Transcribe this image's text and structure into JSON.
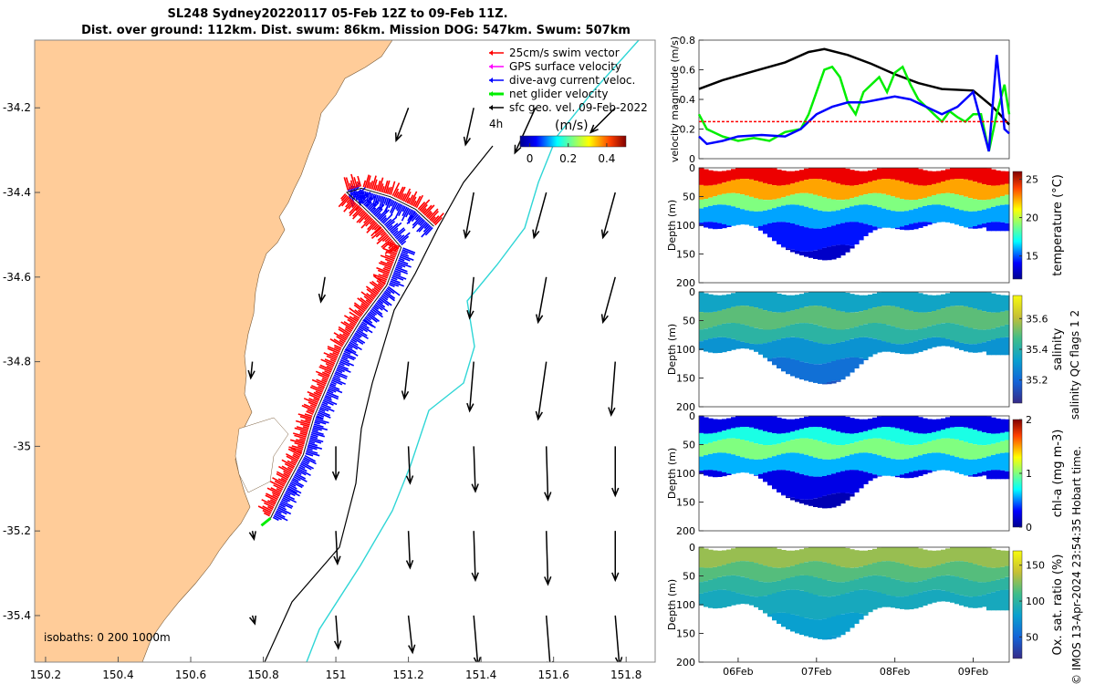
{
  "header": {
    "line1": "SL248 Sydney20220117 05-Feb 12Z to 09-Feb 11Z.",
    "line2": "Dist. over ground: 112km. Dist. swum: 86km. Mission DOG: 547km. Swum: 507km"
  },
  "chart_data": [
    {
      "type": "map",
      "x_ticks": [
        "150.2",
        "150.4",
        "150.6",
        "150.8",
        "151",
        "151.2",
        "151.4",
        "151.6",
        "151.8"
      ],
      "x_values": [
        150.2,
        150.4,
        150.6,
        150.8,
        151.0,
        151.2,
        151.4,
        151.6,
        151.8
      ],
      "y_ticks": [
        "-34.2",
        "-34.4",
        "-34.6",
        "-34.8",
        "-35",
        "-35.2",
        "-35.4"
      ],
      "y_values": [
        -34.2,
        -34.4,
        -34.6,
        -34.8,
        -35.0,
        -35.2,
        -35.4
      ],
      "xlim": [
        150.17,
        151.88
      ],
      "ylim": [
        -35.51,
        -34.04
      ],
      "legend": [
        "25cm/s swim vector",
        "GPS surface velocity",
        "dive-avg current veloc.",
        "net glider velocity",
        "sfc geo. vel. 09-Feb-2022"
      ],
      "legend_colors": [
        "#ff0000",
        "#ff00ff",
        "#0000ff",
        "#00ee00",
        "#000000"
      ],
      "colorbar_unit": "(m/s)",
      "colorbar_ticks": [
        "0",
        "0.2",
        "0.4"
      ],
      "colorbar_values": [
        0,
        0.2,
        0.4
      ],
      "colorbar_range": [
        -0.05,
        0.5
      ],
      "scale_label": "4h",
      "isobath_label": "isobaths: 0   200  1000m",
      "track": [
        [
          151.27,
          -34.48
        ],
        [
          151.22,
          -34.44
        ],
        [
          151.15,
          -34.41
        ],
        [
          151.07,
          -34.39
        ],
        [
          151.03,
          -34.4
        ],
        [
          151.07,
          -34.43
        ],
        [
          151.13,
          -34.48
        ],
        [
          151.18,
          -34.53
        ],
        [
          151.14,
          -34.62
        ],
        [
          151.07,
          -34.7
        ],
        [
          151.02,
          -34.77
        ],
        [
          150.98,
          -34.85
        ],
        [
          150.94,
          -34.93
        ],
        [
          150.91,
          -35.02
        ],
        [
          150.86,
          -35.1
        ],
        [
          150.82,
          -35.17
        ]
      ],
      "vectors": [
        {
          "lon": 151.2,
          "lat": -34.2,
          "u": -0.15,
          "v": -0.4
        },
        {
          "lon": 151.38,
          "lat": -34.2,
          "u": -0.1,
          "v": -0.45
        },
        {
          "lon": 151.55,
          "lat": -34.2,
          "u": -0.25,
          "v": -0.55
        },
        {
          "lon": 151.77,
          "lat": -34.2,
          "u": -0.3,
          "v": -0.3
        },
        {
          "lon": 151.38,
          "lat": -34.4,
          "u": -0.1,
          "v": -0.55
        },
        {
          "lon": 151.58,
          "lat": -34.4,
          "u": -0.15,
          "v": -0.55
        },
        {
          "lon": 151.77,
          "lat": -34.4,
          "u": -0.15,
          "v": -0.55
        },
        {
          "lon": 150.97,
          "lat": -34.6,
          "u": -0.05,
          "v": -0.3
        },
        {
          "lon": 151.38,
          "lat": -34.6,
          "u": -0.05,
          "v": -0.5
        },
        {
          "lon": 151.58,
          "lat": -34.6,
          "u": -0.1,
          "v": -0.55
        },
        {
          "lon": 151.77,
          "lat": -34.6,
          "u": -0.15,
          "v": -0.55
        },
        {
          "lon": 150.77,
          "lat": -34.8,
          "u": -0.02,
          "v": -0.2
        },
        {
          "lon": 151.2,
          "lat": -34.8,
          "u": -0.05,
          "v": -0.45
        },
        {
          "lon": 151.38,
          "lat": -34.8,
          "u": -0.05,
          "v": -0.6
        },
        {
          "lon": 151.58,
          "lat": -34.8,
          "u": -0.1,
          "v": -0.7
        },
        {
          "lon": 151.77,
          "lat": -34.8,
          "u": -0.05,
          "v": -0.65
        },
        {
          "lon": 151.0,
          "lat": -35.0,
          "u": 0.0,
          "v": -0.4
        },
        {
          "lon": 151.2,
          "lat": -35.0,
          "u": 0.02,
          "v": -0.45
        },
        {
          "lon": 151.38,
          "lat": -35.0,
          "u": 0.02,
          "v": -0.55
        },
        {
          "lon": 151.58,
          "lat": -35.0,
          "u": 0.02,
          "v": -0.65
        },
        {
          "lon": 151.77,
          "lat": -35.0,
          "u": 0.0,
          "v": -0.6
        },
        {
          "lon": 150.77,
          "lat": -35.2,
          "u": 0.02,
          "v": -0.1
        },
        {
          "lon": 151.0,
          "lat": -35.2,
          "u": 0.02,
          "v": -0.4
        },
        {
          "lon": 151.2,
          "lat": -35.2,
          "u": 0.02,
          "v": -0.45
        },
        {
          "lon": 151.38,
          "lat": -35.2,
          "u": 0.02,
          "v": -0.6
        },
        {
          "lon": 151.58,
          "lat": -35.2,
          "u": 0.02,
          "v": -0.65
        },
        {
          "lon": 151.77,
          "lat": -35.2,
          "u": 0.0,
          "v": -0.6
        },
        {
          "lon": 150.77,
          "lat": -35.4,
          "u": 0.03,
          "v": -0.1
        },
        {
          "lon": 151.0,
          "lat": -35.4,
          "u": 0.03,
          "v": -0.4
        },
        {
          "lon": 151.2,
          "lat": -35.4,
          "u": 0.05,
          "v": -0.45
        },
        {
          "lon": 151.38,
          "lat": -35.4,
          "u": 0.05,
          "v": -0.6
        },
        {
          "lon": 151.58,
          "lat": -35.4,
          "u": 0.05,
          "v": -0.65
        },
        {
          "lon": 151.77,
          "lat": -35.4,
          "u": 0.05,
          "v": -0.6
        }
      ]
    },
    {
      "type": "line",
      "ylabel": "velocity magnitude (m/s)",
      "y_ticks": [
        "0",
        "0.2",
        "0.4",
        "0.6",
        "0.8"
      ],
      "y_values": [
        0,
        0.2,
        0.4,
        0.6,
        0.8
      ],
      "ylim": [
        0,
        0.8
      ],
      "x_range": [
        5.5,
        9.46
      ],
      "series": [
        {
          "color": "#000000",
          "x": [
            5.5,
            5.8,
            6.2,
            6.6,
            6.9,
            7.1,
            7.4,
            7.7,
            8.0,
            8.3,
            8.6,
            9.0,
            9.25,
            9.46
          ],
          "values": [
            0.47,
            0.53,
            0.59,
            0.65,
            0.72,
            0.74,
            0.7,
            0.64,
            0.57,
            0.51,
            0.47,
            0.46,
            0.35,
            0.23
          ]
        },
        {
          "color": "#00ee00",
          "x": [
            5.5,
            5.6,
            5.8,
            6.0,
            6.2,
            6.4,
            6.6,
            6.8,
            6.9,
            7.0,
            7.1,
            7.2,
            7.3,
            7.4,
            7.5,
            7.6,
            7.8,
            7.9,
            8.0,
            8.1,
            8.2,
            8.3,
            8.4,
            8.5,
            8.6,
            8.7,
            8.8,
            8.9,
            9.0,
            9.1,
            9.2,
            9.3,
            9.4,
            9.46
          ],
          "values": [
            0.3,
            0.2,
            0.15,
            0.12,
            0.14,
            0.12,
            0.18,
            0.2,
            0.3,
            0.45,
            0.6,
            0.62,
            0.55,
            0.38,
            0.3,
            0.45,
            0.55,
            0.45,
            0.58,
            0.62,
            0.5,
            0.4,
            0.35,
            0.3,
            0.25,
            0.32,
            0.28,
            0.25,
            0.3,
            0.3,
            0.05,
            0.3,
            0.5,
            0.3
          ]
        },
        {
          "color": "#0000ff",
          "x": [
            5.5,
            5.6,
            5.8,
            6.0,
            6.3,
            6.6,
            6.8,
            7.0,
            7.2,
            7.4,
            7.6,
            7.8,
            8.0,
            8.2,
            8.4,
            8.6,
            8.8,
            9.0,
            9.1,
            9.2,
            9.3,
            9.4,
            9.46
          ],
          "values": [
            0.15,
            0.1,
            0.12,
            0.15,
            0.16,
            0.15,
            0.2,
            0.3,
            0.35,
            0.38,
            0.38,
            0.4,
            0.42,
            0.4,
            0.35,
            0.3,
            0.35,
            0.45,
            0.25,
            0.05,
            0.7,
            0.2,
            0.17
          ]
        },
        {
          "color": "#ff0000",
          "x": [
            5.5,
            9.46
          ],
          "values": [
            0.25,
            0.25
          ]
        }
      ]
    },
    {
      "type": "heatmap",
      "name": "temperature",
      "colorbar_label": "temperature (°C)",
      "cb_ticks": [
        "15",
        "20",
        "25"
      ],
      "cb_values": [
        15,
        20,
        25
      ],
      "cb_range": [
        12,
        26
      ],
      "ylabel": "Depth (m)",
      "y_ticks": [
        "0",
        "50",
        "100",
        "150",
        "200"
      ],
      "ylim": [
        0,
        200
      ],
      "x_ticks": [],
      "layers": [
        {
          "top": 0,
          "value": 24.5
        },
        {
          "top": 25,
          "value": 22
        },
        {
          "top": 50,
          "value": 19
        },
        {
          "top": 70,
          "value": 16
        },
        {
          "top": 100,
          "value": 14
        },
        {
          "top": 140,
          "value": 13
        }
      ]
    },
    {
      "type": "heatmap",
      "name": "salinity",
      "colorbar_label": "salinity",
      "cb_ticks": [
        "35.2",
        "35.4",
        "35.6"
      ],
      "cb_values": [
        35.2,
        35.4,
        35.6
      ],
      "cb_range": [
        35.05,
        35.75
      ],
      "ylabel": "Depth (m)",
      "y_ticks": [
        "0",
        "50",
        "100",
        "150",
        "200"
      ],
      "ylim": [
        0,
        200
      ],
      "x_ticks": [],
      "layers": [
        {
          "top": 0,
          "value": 35.35
        },
        {
          "top": 30,
          "value": 35.5
        },
        {
          "top": 60,
          "value": 35.42
        },
        {
          "top": 85,
          "value": 35.3
        },
        {
          "top": 120,
          "value": 35.22
        },
        {
          "top": 160,
          "value": 35.15
        }
      ]
    },
    {
      "type": "heatmap",
      "name": "chl-a",
      "colorbar_label": "chl-a (mg m-3)",
      "cb_ticks": [
        "0",
        "1",
        "2"
      ],
      "cb_values": [
        0,
        1,
        2
      ],
      "cb_range": [
        0,
        2
      ],
      "ylabel": "Depth (m)",
      "y_ticks": [
        "0",
        "50",
        "100",
        "150",
        "200"
      ],
      "ylim": [
        0,
        200
      ],
      "x_ticks": [],
      "layers": [
        {
          "top": 0,
          "value": 0.2
        },
        {
          "top": 25,
          "value": 0.8
        },
        {
          "top": 45,
          "value": 1.0
        },
        {
          "top": 70,
          "value": 0.6
        },
        {
          "top": 100,
          "value": 0.2
        },
        {
          "top": 140,
          "value": 0.1
        }
      ]
    },
    {
      "type": "heatmap",
      "name": "oxygen",
      "colorbar_label": "Ox. sat. ratio (%)",
      "cb_ticks": [
        "50",
        "100",
        "150"
      ],
      "cb_values": [
        50,
        100,
        150
      ],
      "cb_range": [
        20,
        170
      ],
      "ylabel": "Depth (m)",
      "y_ticks": [
        "0",
        "50",
        "100",
        "150",
        "200"
      ],
      "ylim": [
        0,
        200
      ],
      "x_ticks": [
        "06Feb",
        "07Feb",
        "08Feb",
        "09Feb"
      ],
      "x_values": [
        6,
        7,
        8,
        9
      ],
      "layers": [
        {
          "top": 0,
          "value": 130
        },
        {
          "top": 30,
          "value": 115
        },
        {
          "top": 55,
          "value": 100
        },
        {
          "top": 80,
          "value": 88
        },
        {
          "top": 120,
          "value": 80
        },
        {
          "top": 160,
          "value": 76
        }
      ]
    }
  ],
  "side_labels": {
    "flags": "salinity QC flags 1  2",
    "credit": "© IMOS 13-Apr-2024 23:54:35 Hobart time."
  }
}
